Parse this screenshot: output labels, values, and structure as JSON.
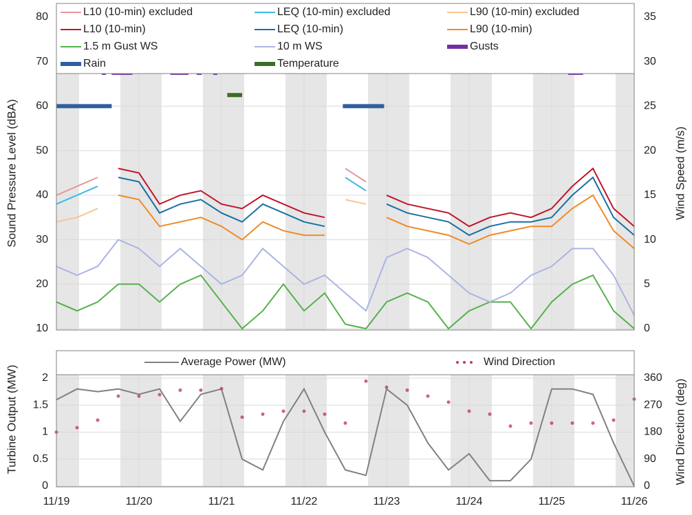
{
  "chart_data": [
    {
      "type": "line",
      "ylabel": "Sound Pressure Level (dBA)",
      "y2label": "Wind Speed (m/s)",
      "x": [
        0,
        0.25,
        0.5,
        0.75,
        1,
        1.25,
        1.5,
        1.75,
        2,
        2.25,
        2.5,
        2.75,
        3,
        3.25,
        3.5,
        3.75,
        4,
        4.25,
        4.5,
        4.75,
        5,
        5.25,
        5.5,
        5.75,
        6,
        6.25,
        6.5,
        6.75,
        7
      ],
      "xlim": [
        0,
        7
      ],
      "xticks": [
        0,
        1,
        2,
        3,
        4,
        5,
        6,
        7
      ],
      "ylim": [
        10,
        80
      ],
      "yticks": [
        10,
        20,
        30,
        40,
        50,
        60,
        70,
        80
      ],
      "y2lim": [
        0,
        35
      ],
      "y2ticks": [
        0,
        5,
        10,
        15,
        20,
        25,
        30,
        35
      ],
      "grid": true,
      "series": [
        {
          "name": "L10 (10-min) excluded",
          "color": "#e8969b",
          "values": [
            40,
            42,
            44,
            null,
            null,
            null,
            null,
            null,
            null,
            null,
            null,
            null,
            null,
            null,
            46,
            43,
            null,
            null,
            null,
            null,
            null,
            null,
            null,
            null,
            null,
            null,
            null,
            null,
            null
          ]
        },
        {
          "name": "LEQ (10-min) excluded",
          "color": "#3db8e8",
          "values": [
            38,
            40,
            42,
            null,
            null,
            null,
            null,
            null,
            null,
            null,
            null,
            null,
            null,
            null,
            44,
            41,
            null,
            null,
            null,
            null,
            null,
            null,
            null,
            null,
            null,
            null,
            null,
            null,
            null
          ]
        },
        {
          "name": "L90 (10-min) excluded",
          "color": "#f9c48f",
          "values": [
            34,
            35,
            37,
            null,
            null,
            null,
            null,
            null,
            null,
            null,
            null,
            null,
            null,
            null,
            39,
            38,
            null,
            null,
            null,
            null,
            null,
            null,
            null,
            null,
            null,
            null,
            null,
            null,
            null
          ]
        },
        {
          "name": "L10 (10-min)",
          "color": "#c0142c",
          "values": [
            null,
            null,
            null,
            46,
            45,
            38,
            40,
            41,
            38,
            37,
            40,
            38,
            36,
            35,
            null,
            null,
            40,
            38,
            37,
            36,
            33,
            35,
            36,
            35,
            37,
            42,
            46,
            37,
            33
          ]
        },
        {
          "name": "LEQ (10-min)",
          "color": "#1a6fa3",
          "values": [
            null,
            null,
            null,
            44,
            43,
            36,
            38,
            39,
            36,
            34,
            38,
            36,
            34,
            33,
            null,
            null,
            38,
            36,
            35,
            34,
            31,
            33,
            34,
            34,
            35,
            40,
            44,
            35,
            31
          ]
        },
        {
          "name": "L90 (10-min)",
          "color": "#f08a24",
          "values": [
            null,
            null,
            null,
            40,
            39,
            33,
            34,
            35,
            33,
            30,
            34,
            32,
            31,
            31,
            null,
            null,
            35,
            33,
            32,
            31,
            29,
            31,
            32,
            33,
            33,
            37,
            40,
            32,
            28
          ]
        },
        {
          "name": "1.5 m Gust WS",
          "color": "#55b04a",
          "axis": "y2",
          "values": [
            3,
            2,
            3,
            5,
            5,
            3,
            5,
            6,
            3,
            0,
            2,
            5,
            2,
            4,
            0.5,
            0,
            3,
            4,
            3,
            0,
            2,
            3,
            3,
            0,
            3,
            5,
            6,
            2,
            0
          ]
        },
        {
          "name": "10 m WS",
          "color": "#aab4e4",
          "axis": "y2",
          "values": [
            7,
            6,
            7,
            10,
            9,
            7,
            9,
            7,
            5,
            6,
            9,
            7,
            5,
            6,
            4,
            2,
            8,
            9,
            8,
            6,
            4,
            3,
            4,
            6,
            7,
            9,
            9,
            6,
            1.5
          ]
        }
      ],
      "bars": [
        {
          "name": "Gusts",
          "color": "#7030a0",
          "level": 67.5,
          "spans": [
            [
              0.55,
              0.6
            ],
            [
              0.67,
              0.92
            ],
            [
              1.38,
              1.6
            ],
            [
              1.7,
              1.76
            ],
            [
              1.9,
              1.95
            ],
            [
              6.2,
              6.38
            ]
          ]
        },
        {
          "name": "Rain",
          "color": "#2e5fa0",
          "level": 60,
          "spans": [
            [
              0,
              0.67
            ],
            [
              3.47,
              3.97
            ]
          ]
        },
        {
          "name": "Temperature",
          "color": "#3d6b2a",
          "level": 62.5,
          "spans": [
            [
              2.07,
              2.25
            ]
          ]
        }
      ]
    },
    {
      "type": "line",
      "ylabel": "Turbine Output (MW)",
      "y2label": "Wind Direction (deg)",
      "x": [
        0,
        0.25,
        0.5,
        0.75,
        1,
        1.25,
        1.5,
        1.75,
        2,
        2.25,
        2.5,
        2.75,
        3,
        3.25,
        3.5,
        3.75,
        4,
        4.25,
        4.5,
        4.75,
        5,
        5.25,
        5.5,
        5.75,
        6,
        6.25,
        6.5,
        6.75,
        7
      ],
      "xlim": [
        0,
        7
      ],
      "xticks": [
        {
          "value": 0,
          "label": "11/19"
        },
        {
          "value": 1,
          "label": "11/20"
        },
        {
          "value": 2,
          "label": "11/21"
        },
        {
          "value": 3,
          "label": "11/22"
        },
        {
          "value": 4,
          "label": "11/23"
        },
        {
          "value": 5,
          "label": "11/24"
        },
        {
          "value": 6,
          "label": "11/25"
        },
        {
          "value": 7,
          "label": "11/26"
        }
      ],
      "ylim": [
        0,
        2
      ],
      "yticks": [
        0,
        0.5,
        1,
        1.5,
        2
      ],
      "y2lim": [
        0,
        360
      ],
      "y2ticks": [
        0,
        90,
        180,
        270,
        360
      ],
      "grid": true,
      "series": [
        {
          "name": "Average Power (MW)",
          "color": "#808080",
          "values": [
            1.6,
            1.8,
            1.75,
            1.8,
            1.7,
            1.8,
            1.2,
            1.7,
            1.8,
            0.5,
            0.3,
            1.2,
            1.8,
            1.0,
            0.3,
            0.2,
            1.8,
            1.5,
            0.8,
            0.3,
            0.6,
            0.1,
            0.1,
            0.5,
            1.8,
            1.8,
            1.7,
            0.8,
            0
          ]
        },
        {
          "name": "Wind Direction",
          "color": "#c0404f",
          "axis": "y2",
          "type": "scatter",
          "values": [
            180,
            195,
            220,
            300,
            300,
            305,
            320,
            320,
            325,
            230,
            240,
            250,
            250,
            240,
            210,
            350,
            330,
            320,
            300,
            280,
            250,
            240,
            200,
            210,
            210,
            210,
            210,
            220,
            290
          ]
        }
      ]
    }
  ]
}
